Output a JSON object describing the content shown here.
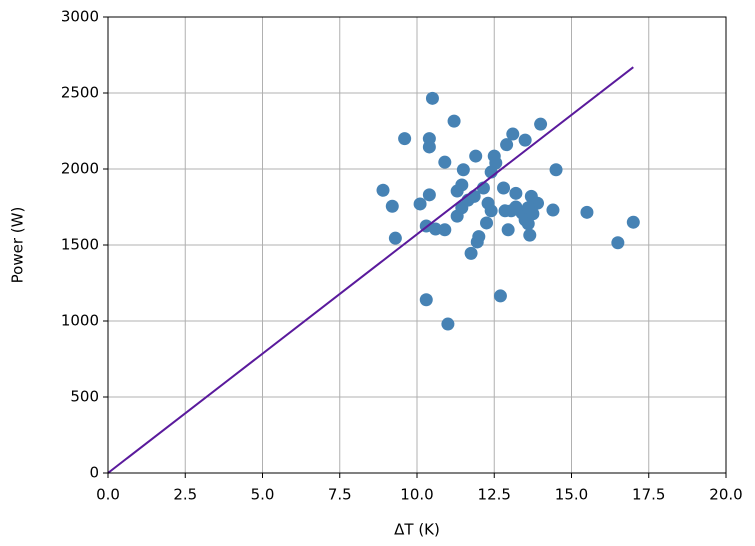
{
  "chart_data": {
    "type": "scatter",
    "xlabel": "ΔT (K)",
    "ylabel": "Power (W)",
    "xlim": [
      0,
      20
    ],
    "ylim": [
      0,
      3000
    ],
    "xticks": [
      {
        "value": 0,
        "label": "0.0"
      },
      2.5,
      {
        "value": 5,
        "label": "5.0"
      },
      7.5,
      {
        "value": 10,
        "label": "10.0"
      },
      12.5,
      {
        "value": 15,
        "label": "15.0"
      },
      17.5,
      {
        "value": 20,
        "label": "20.0"
      }
    ],
    "yticks": [
      0,
      500,
      1000,
      1500,
      2000,
      2500,
      3000
    ],
    "grid": true,
    "series": [
      {
        "type": "scatter",
        "color": "#4682b4",
        "x": [
          10.5,
          9.6,
          10.4,
          10.4,
          11.2,
          14.0,
          13.1,
          13.5,
          12.9,
          12.5,
          12.55,
          11.9,
          10.9,
          11.5,
          12.4,
          14.5,
          8.9,
          9.2,
          9.3,
          10.1,
          10.4,
          11.3,
          12.15,
          12.8,
          13.2,
          13.7,
          13.9,
          14.4,
          15.5,
          10.3,
          10.6,
          10.9,
          11.3,
          11.45,
          11.65,
          11.85,
          12.3,
          12.4,
          12.25,
          12.0,
          11.95,
          11.75,
          12.95,
          12.85,
          13.05,
          13.2,
          13.4,
          13.5,
          13.6,
          13.75,
          13.6,
          13.65,
          16.5,
          17.0,
          10.3,
          11.0,
          12.7,
          11.45
        ],
        "values": [
          2465,
          2200,
          2200,
          2145,
          2315,
          2295,
          2230,
          2190,
          2160,
          2085,
          2040,
          2085,
          2045,
          1995,
          1980,
          1995,
          1860,
          1755,
          1545,
          1770,
          1830,
          1855,
          1875,
          1875,
          1840,
          1820,
          1775,
          1730,
          1715,
          1625,
          1605,
          1600,
          1690,
          1745,
          1795,
          1820,
          1775,
          1725,
          1645,
          1555,
          1520,
          1445,
          1600,
          1725,
          1725,
          1750,
          1710,
          1665,
          1745,
          1705,
          1640,
          1565,
          1515,
          1650,
          1140,
          980,
          1165,
          1895
        ]
      },
      {
        "type": "line",
        "color": "#5a1a9c",
        "x": [
          0,
          17
        ],
        "values": [
          0,
          2670
        ]
      }
    ]
  }
}
